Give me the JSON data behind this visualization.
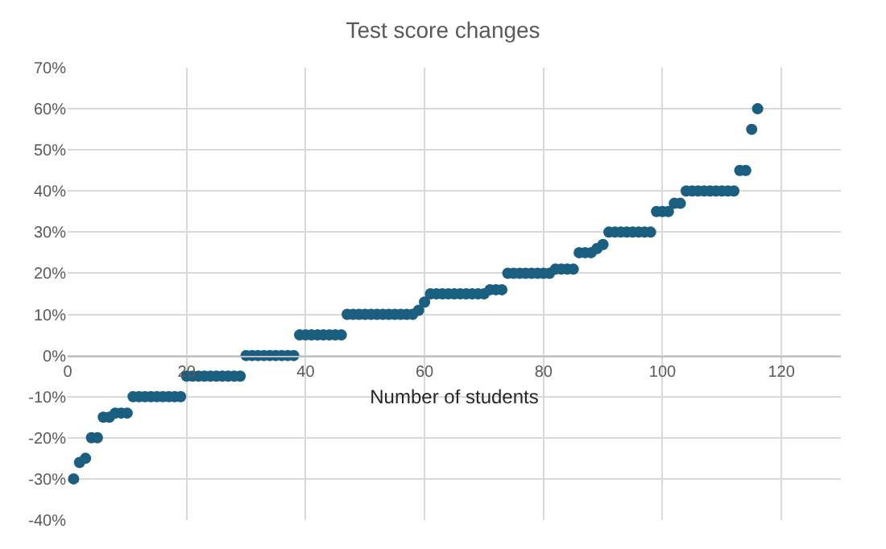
{
  "chart_data": {
    "type": "scatter",
    "title": "Test score changes",
    "xlabel": "Number of students",
    "x": [
      1,
      2,
      3,
      4,
      5,
      6,
      7,
      8,
      9,
      10,
      11,
      12,
      13,
      14,
      15,
      16,
      17,
      18,
      19,
      20,
      21,
      22,
      23,
      24,
      25,
      26,
      27,
      28,
      29,
      30,
      31,
      32,
      33,
      34,
      35,
      36,
      37,
      38,
      39,
      40,
      41,
      42,
      43,
      44,
      45,
      46,
      47,
      48,
      49,
      50,
      51,
      52,
      53,
      54,
      55,
      56,
      57,
      58,
      59,
      60,
      61,
      62,
      63,
      64,
      65,
      66,
      67,
      68,
      69,
      70,
      71,
      72,
      73,
      74,
      75,
      76,
      77,
      78,
      79,
      80,
      81,
      82,
      83,
      84,
      85,
      86,
      87,
      88,
      89,
      90,
      91,
      92,
      93,
      94,
      95,
      96,
      97,
      98,
      99,
      100,
      101,
      102,
      103,
      104,
      105,
      106,
      107,
      108,
      109,
      110,
      111,
      112,
      113,
      114,
      115,
      116
    ],
    "series": [
      {
        "color": "#1a5e80",
        "values": [
          -30,
          -26,
          -25,
          -20,
          -20,
          -15,
          -15,
          -14,
          -14,
          -14,
          -10,
          -10,
          -10,
          -10,
          -10,
          -10,
          -10,
          -10,
          -10,
          -5,
          -5,
          -5,
          -5,
          -5,
          -5,
          -5,
          -5,
          -5,
          -5,
          0,
          0,
          0,
          0,
          0,
          0,
          0,
          0,
          0,
          5,
          5,
          5,
          5,
          5,
          5,
          5,
          5,
          10,
          10,
          10,
          10,
          10,
          10,
          10,
          10,
          10,
          10,
          10,
          10,
          11,
          13,
          15,
          15,
          15,
          15,
          15,
          15,
          15,
          15,
          15,
          15,
          16,
          16,
          16,
          20,
          20,
          20,
          20,
          20,
          20,
          20,
          20,
          21,
          21,
          21,
          21,
          25,
          25,
          25,
          26,
          27,
          30,
          30,
          30,
          30,
          30,
          30,
          30,
          30,
          35,
          35,
          35,
          37,
          37,
          40,
          40,
          40,
          40,
          40,
          40,
          40,
          40,
          40,
          45,
          45,
          55,
          60
        ]
      }
    ],
    "xlim": [
      0,
      130
    ],
    "xticks": [
      0,
      20,
      40,
      60,
      80,
      100,
      120
    ],
    "ylim": [
      -40,
      70
    ],
    "yticks": [
      {
        "value": -40,
        "label": "-40%"
      },
      {
        "value": -30,
        "label": "-30%"
      },
      {
        "value": -20,
        "label": "-20%"
      },
      {
        "value": -10,
        "label": "-10%"
      },
      {
        "value": 0,
        "label": "0%"
      },
      {
        "value": 10,
        "label": "10%"
      },
      {
        "value": 20,
        "label": "20%"
      },
      {
        "value": 30,
        "label": "30%"
      },
      {
        "value": 40,
        "label": "40%"
      },
      {
        "value": 50,
        "label": "50%"
      },
      {
        "value": 60,
        "label": "60%"
      },
      {
        "value": 70,
        "label": "70%"
      }
    ],
    "grid": true,
    "marker": "circle"
  }
}
